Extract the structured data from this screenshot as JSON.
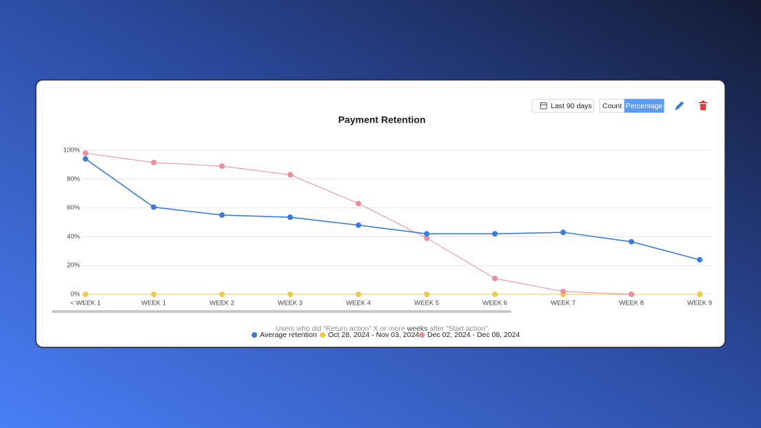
{
  "toolbar": {
    "date_range": "Last 90 days",
    "toggle": [
      {
        "label": "Count",
        "active": false
      },
      {
        "label": "Percentage",
        "active": true
      }
    ]
  },
  "chart_data": {
    "type": "line",
    "title": "Payment Retention",
    "categories": [
      "< WEEK 1",
      "WEEK 1",
      "WEEK 2",
      "WEEK 3",
      "WEEK 4",
      "WEEK 5",
      "WEEK 6",
      "WEEK 7",
      "WEEK 8",
      "WEEK 9"
    ],
    "series": [
      {
        "name": "Average retention",
        "color": "#3a7be0",
        "values": [
          94,
          60.5,
          55,
          53.5,
          48,
          42,
          42,
          43,
          36.5,
          24
        ]
      },
      {
        "name": "Oct 28, 2024 - Nov 03, 2024",
        "color": "#f5c842",
        "values": [
          0,
          0,
          0,
          0,
          0,
          0,
          0,
          0,
          0,
          0
        ]
      },
      {
        "name": "Dec 02, 2024 - Dec 08, 2024",
        "color": "#f28b9b",
        "values": [
          98,
          91.5,
          89,
          83,
          63,
          39,
          11,
          2,
          0,
          null
        ]
      }
    ],
    "ylim": [
      0,
      100
    ],
    "yticks": [
      {
        "value": 0,
        "label": "0%"
      },
      {
        "value": 20,
        "label": "20%"
      },
      {
        "value": 40,
        "label": "40%"
      },
      {
        "value": 60,
        "label": "60%"
      },
      {
        "value": 80,
        "label": "80%"
      },
      {
        "value": 100,
        "label": "100%"
      }
    ],
    "grid": true,
    "caption": {
      "before": "Users who did “Return action” X or more ",
      "emphasis": "weeks",
      "after": " after “Start action”."
    }
  }
}
